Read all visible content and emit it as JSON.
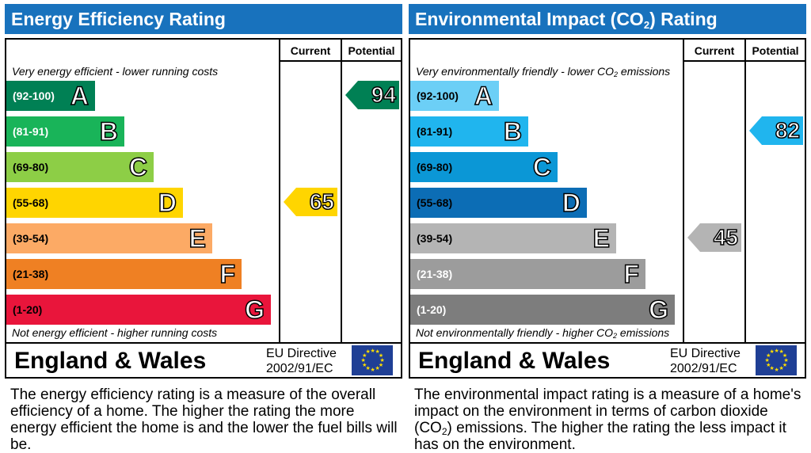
{
  "energy": {
    "title": "Energy Efficiency Rating",
    "col_current": "Current",
    "col_potential": "Potential",
    "top_caption": "Very energy efficient - lower running costs",
    "bottom_caption": "Not energy efficient - higher running costs",
    "bands": [
      {
        "range": "(92-100)",
        "letter": "A",
        "color": "#008054",
        "range_color": "#ffffff"
      },
      {
        "range": "(81-91)",
        "letter": "B",
        "color": "#19b459",
        "range_color": "#ffffff"
      },
      {
        "range": "(69-80)",
        "letter": "C",
        "color": "#8dce46",
        "range_color": "#000000"
      },
      {
        "range": "(55-68)",
        "letter": "D",
        "color": "#ffd500",
        "range_color": "#000000"
      },
      {
        "range": "(39-54)",
        "letter": "E",
        "color": "#fcaa65",
        "range_color": "#000000"
      },
      {
        "range": "(21-38)",
        "letter": "F",
        "color": "#ef8023",
        "range_color": "#000000"
      },
      {
        "range": "(1-20)",
        "letter": "G",
        "color": "#e9153b",
        "range_color": "#000000"
      }
    ],
    "current": {
      "value": "65",
      "band": "D",
      "color": "#ffd500"
    },
    "potential": {
      "value": "94",
      "band": "A",
      "color": "#008054"
    },
    "region": "England & Wales",
    "directive_line1": "EU Directive",
    "directive_line2": "2002/91/EC",
    "description": "The energy efficiency rating is a measure of the overall efficiency of a home. The higher the rating the more energy efficient the home is and the lower the fuel bills will be."
  },
  "environment": {
    "title_pre": "Environmental Impact (CO",
    "title_sub": "2",
    "title_post": ") Rating",
    "col_current": "Current",
    "col_potential": "Potential",
    "top_caption_pre": "Very environmentally friendly - lower CO",
    "top_caption_sub": "2",
    "top_caption_post": " emissions",
    "bottom_caption_pre": "Not environmentally friendly - higher CO",
    "bottom_caption_sub": "2",
    "bottom_caption_post": " emissions",
    "bands": [
      {
        "range": "(92-100)",
        "letter": "A",
        "color": "#6ccff6",
        "range_color": "#000000"
      },
      {
        "range": "(81-91)",
        "letter": "B",
        "color": "#20b5ee",
        "range_color": "#000000"
      },
      {
        "range": "(69-80)",
        "letter": "C",
        "color": "#0b97d6",
        "range_color": "#000000"
      },
      {
        "range": "(55-68)",
        "letter": "D",
        "color": "#0c6db5",
        "range_color": "#000000"
      },
      {
        "range": "(39-54)",
        "letter": "E",
        "color": "#b4b4b4",
        "range_color": "#000000"
      },
      {
        "range": "(21-38)",
        "letter": "F",
        "color": "#9c9c9c",
        "range_color": "#ffffff"
      },
      {
        "range": "(1-20)",
        "letter": "G",
        "color": "#7d7d7d",
        "range_color": "#ffffff"
      }
    ],
    "current": {
      "value": "45",
      "band": "E",
      "color": "#b4b4b4"
    },
    "potential": {
      "value": "82",
      "band": "B",
      "color": "#20b5ee"
    },
    "region": "England & Wales",
    "directive_line1": "EU Directive",
    "directive_line2": "2002/91/EC",
    "description_pre": "The environmental impact rating is a measure of a home's impact on the environment in terms of carbon dioxide (CO",
    "description_sub": "2",
    "description_post": ") emissions. The higher the rating the less impact it has on the environment."
  },
  "icons": {
    "flag": "eu-flag-icon"
  }
}
